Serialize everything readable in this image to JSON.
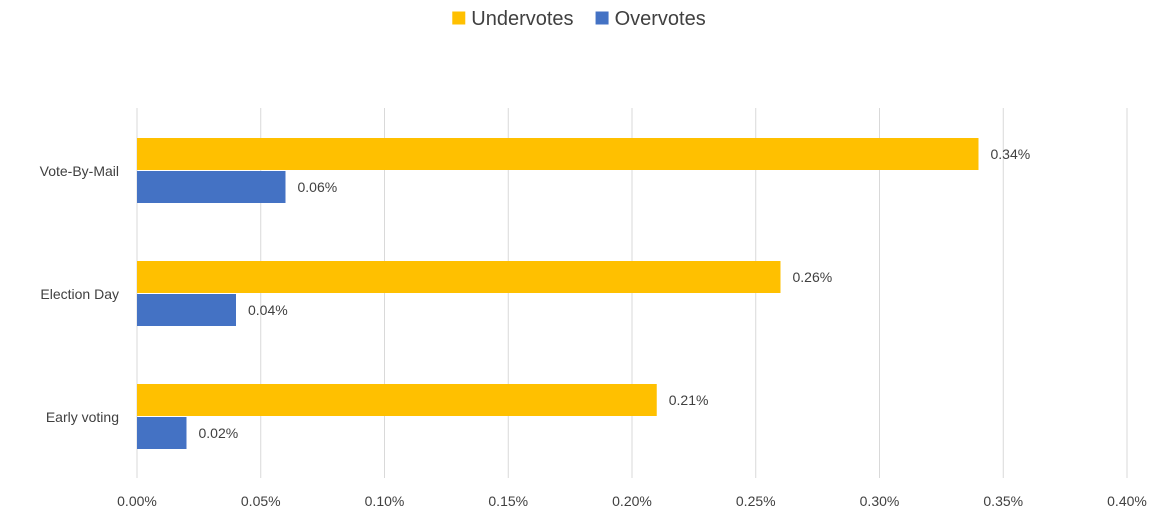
{
  "chart_data": {
    "type": "bar",
    "orientation": "horizontal",
    "categories": [
      "Vote-By-Mail",
      "Election Day",
      "Early voting"
    ],
    "series": [
      {
        "name": "Undervotes",
        "color": "#FFC000",
        "values": [
          0.34,
          0.26,
          0.21
        ],
        "labels": [
          "0.34%",
          "0.26%",
          "0.21%"
        ]
      },
      {
        "name": "Overvotes",
        "color": "#4472C4",
        "values": [
          0.06,
          0.04,
          0.02
        ],
        "labels": [
          "0.06%",
          "0.04%",
          "0.02%"
        ]
      }
    ],
    "xlim": [
      0,
      0.4
    ],
    "x_ticks": [
      0,
      0.05,
      0.1,
      0.15,
      0.2,
      0.25,
      0.3,
      0.35,
      0.4
    ],
    "x_tick_labels": [
      "0.00%",
      "0.05%",
      "0.10%",
      "0.15%",
      "0.20%",
      "0.25%",
      "0.30%",
      "0.35%",
      "0.40%"
    ],
    "grid": true,
    "gridline_color": "#D9D9D9",
    "legend_position": "top-center",
    "title": "",
    "xlabel": "",
    "ylabel": ""
  }
}
